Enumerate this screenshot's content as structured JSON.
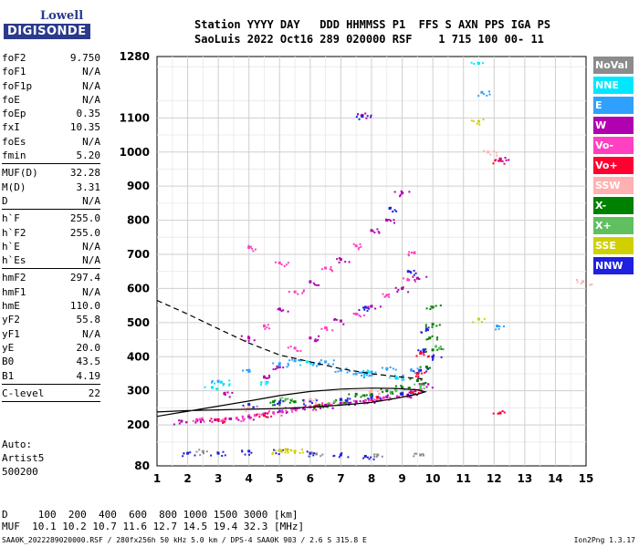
{
  "logo": {
    "line1": "Lowell",
    "line2": "DIGISONDE"
  },
  "header": {
    "labels": "Station YYYY DAY   DDD HHMMSS P1  FFS S AXN PPS IGA PS",
    "values": "SaoLuis 2022 Oct16 289 020000 RSF    1 715 100 00- 11"
  },
  "params": [
    [
      {
        "k": "foF2",
        "v": "9.750"
      },
      {
        "k": "foF1",
        "v": "N/A"
      },
      {
        "k": "foF1p",
        "v": "N/A"
      },
      {
        "k": "foE",
        "v": "N/A"
      },
      {
        "k": "foEp",
        "v": "0.35"
      },
      {
        "k": "fxI",
        "v": "10.35"
      },
      {
        "k": "foEs",
        "v": "N/A"
      },
      {
        "k": "fmin",
        "v": "5.20"
      }
    ],
    [
      {
        "k": "MUF(D)",
        "v": "32.28"
      },
      {
        "k": "M(D)",
        "v": "3.31"
      },
      {
        "k": "D",
        "v": "N/A"
      }
    ],
    [
      {
        "k": "h`F",
        "v": "255.0"
      },
      {
        "k": "h`F2",
        "v": "255.0"
      },
      {
        "k": "h`E",
        "v": "N/A"
      },
      {
        "k": "h`Es",
        "v": "N/A"
      }
    ],
    [
      {
        "k": "hmF2",
        "v": "297.4"
      },
      {
        "k": "hmF1",
        "v": "N/A"
      },
      {
        "k": "hmE",
        "v": "110.0"
      },
      {
        "k": "yF2",
        "v": "55.8"
      },
      {
        "k": "yF1",
        "v": "N/A"
      },
      {
        "k": "yE",
        "v": "20.0"
      },
      {
        "k": "B0",
        "v": "43.5"
      },
      {
        "k": "B1",
        "v": "4.19"
      }
    ],
    [
      {
        "k": "C-level",
        "v": "22"
      }
    ]
  ],
  "auto": {
    "line1": "Auto:",
    "line2": "Artist5",
    "line3": "500200"
  },
  "muf_table": {
    "d_row": "D     100  200  400  600  800 1000 1500 3000 [km]",
    "muf_row": "MUF  10.1 10.2 10.7 11.6 12.7 14.5 19.4 32.3 [MHz]"
  },
  "footer": "SAA0K_2022289020000.RSF / 280fx256h 50 kHz 5.0 km / DPS-4 SAA0K 903 / 2.6 S 315.8 E",
  "version": "Ion2Png 1.3.17",
  "legend": [
    {
      "label": "NoVal",
      "color": "#8c8c8c"
    },
    {
      "label": "NNE",
      "color": "#00e8ff"
    },
    {
      "label": "E",
      "color": "#30a0ff"
    },
    {
      "label": "W",
      "color": "#b000b0"
    },
    {
      "label": "Vo-",
      "color": "#ff40c0"
    },
    {
      "label": "Vo+",
      "color": "#ff0030"
    },
    {
      "label": "SSW",
      "color": "#ffb0b0"
    },
    {
      "label": "X-",
      "color": "#008000"
    },
    {
      "label": "X+",
      "color": "#60c060"
    },
    {
      "label": "SSE",
      "color": "#d0d000"
    },
    {
      "label": "NNW",
      "color": "#2020e0"
    }
  ],
  "chart_data": {
    "type": "scatter",
    "xlim": [
      1,
      15
    ],
    "ylim": [
      80,
      1280
    ],
    "x_ticks": [
      1,
      2,
      3,
      4,
      5,
      6,
      7,
      8,
      9,
      10,
      11,
      12,
      13,
      14,
      15
    ],
    "y_ticks": [
      80,
      200,
      300,
      400,
      500,
      600,
      700,
      800,
      900,
      1000,
      1100,
      1280
    ],
    "grid": true,
    "series": [
      {
        "color": "#b000b0",
        "points": [
          [
            1.8,
            211
          ],
          [
            2.3,
            213
          ],
          [
            2.9,
            215
          ],
          [
            3.4,
            218
          ],
          [
            4,
            224
          ],
          [
            4.5,
            232
          ],
          [
            5,
            240
          ],
          [
            5.5,
            248
          ],
          [
            6,
            253
          ],
          [
            6.5,
            258
          ],
          [
            7,
            263
          ],
          [
            7.5,
            268
          ],
          [
            8,
            274
          ],
          [
            8.5,
            282
          ],
          [
            9,
            290
          ],
          [
            9.4,
            300
          ],
          [
            9.7,
            320
          ],
          [
            3.2,
            292
          ],
          [
            4.5,
            340
          ],
          [
            5,
            370
          ],
          [
            6,
            455
          ],
          [
            7,
            505
          ],
          [
            8,
            548
          ],
          [
            9,
            600
          ],
          [
            9.5,
            630
          ],
          [
            4,
            455
          ],
          [
            5,
            540
          ],
          [
            6,
            620
          ],
          [
            7,
            685
          ],
          [
            8,
            770
          ],
          [
            8.5,
            800
          ],
          [
            9,
            880
          ],
          [
            7.7,
            1108
          ],
          [
            12.2,
            980
          ]
        ]
      },
      {
        "color": "#ff40c0",
        "points": [
          [
            2.4,
            216
          ],
          [
            3,
            216
          ],
          [
            3.6,
            220
          ],
          [
            4.2,
            228
          ],
          [
            4.8,
            236
          ],
          [
            5.4,
            246
          ],
          [
            6,
            254
          ],
          [
            6.6,
            260
          ],
          [
            7.2,
            266
          ],
          [
            7.8,
            272
          ],
          [
            8.4,
            280
          ],
          [
            9,
            292
          ],
          [
            9.4,
            302
          ],
          [
            5.5,
            425
          ],
          [
            6.5,
            485
          ],
          [
            7.5,
            525
          ],
          [
            8.5,
            580
          ],
          [
            9.2,
            625
          ],
          [
            9.4,
            705
          ],
          [
            4.5,
            490
          ],
          [
            5.5,
            590
          ],
          [
            6.5,
            660
          ],
          [
            7.5,
            725
          ],
          [
            4,
            720
          ],
          [
            5,
            675
          ]
        ]
      },
      {
        "color": "#30a0ff",
        "points": [
          [
            3,
            328
          ],
          [
            4,
            360
          ],
          [
            5,
            380
          ],
          [
            5.5,
            388
          ],
          [
            6.5,
            385
          ],
          [
            7,
            360
          ],
          [
            7.5,
            350
          ],
          [
            8,
            355
          ],
          [
            8.5,
            365
          ],
          [
            9,
            340
          ],
          [
            9.3,
            360
          ],
          [
            6.3,
            378
          ],
          [
            7.8,
            352
          ],
          [
            12.1,
            490
          ],
          [
            11.6,
            1175
          ]
        ]
      },
      {
        "color": "#00e8ff",
        "points": [
          [
            2.8,
            310
          ],
          [
            3.1,
            325
          ],
          [
            4.6,
            325
          ],
          [
            8.8,
            340
          ],
          [
            7.9,
            355
          ],
          [
            11.5,
            1260
          ],
          [
            5.9,
            385
          ]
        ]
      },
      {
        "color": "#008000",
        "points": [
          [
            5.5,
            268
          ],
          [
            6.3,
            258
          ],
          [
            7,
            273
          ],
          [
            7.5,
            290
          ],
          [
            8,
            290
          ],
          [
            8.5,
            300
          ],
          [
            9,
            310
          ],
          [
            9.5,
            330
          ],
          [
            9.8,
            370
          ],
          [
            10,
            420
          ],
          [
            10,
            495
          ],
          [
            10,
            545
          ],
          [
            9.9,
            455
          ],
          [
            4.8,
            268
          ]
        ]
      },
      {
        "color": "#60c060",
        "points": [
          [
            5.2,
            275
          ],
          [
            6.8,
            268
          ],
          [
            8.8,
            300
          ],
          [
            9.6,
            315
          ],
          [
            10.1,
            430
          ]
        ]
      },
      {
        "color": "#2020e0",
        "points": [
          [
            2,
            117
          ],
          [
            3,
            117
          ],
          [
            4,
            123
          ],
          [
            5,
            125
          ],
          [
            6,
            117
          ],
          [
            7,
            112
          ],
          [
            7.8,
            108
          ],
          [
            4,
            260
          ],
          [
            5,
            265
          ],
          [
            6,
            270
          ],
          [
            7,
            275
          ],
          [
            8,
            280
          ],
          [
            9,
            292
          ],
          [
            9.6,
            360
          ],
          [
            9.7,
            420
          ],
          [
            9.8,
            480
          ],
          [
            10,
            400
          ],
          [
            7.7,
            1105
          ],
          [
            8.6,
            835
          ],
          [
            7.8,
            545
          ],
          [
            9.2,
            650
          ]
        ]
      },
      {
        "color": "#ff0030",
        "points": [
          [
            3,
            215
          ],
          [
            4.5,
            228
          ],
          [
            6.2,
            256
          ],
          [
            8.2,
            280
          ],
          [
            9.3,
            295
          ],
          [
            9.5,
            350
          ],
          [
            9.6,
            410
          ],
          [
            12.2,
            975
          ],
          [
            12.2,
            235
          ]
        ]
      },
      {
        "color": "#d0d000",
        "points": [
          [
            5,
            125
          ],
          [
            5.2,
            128
          ],
          [
            5.5,
            123
          ],
          [
            11.5,
            1090
          ],
          [
            11.5,
            510
          ]
        ]
      },
      {
        "color": "#ffb0b0",
        "points": [
          [
            4,
            250
          ],
          [
            6,
            275
          ],
          [
            8,
            300
          ],
          [
            14.9,
            620
          ],
          [
            11.8,
            1000
          ]
        ]
      },
      {
        "color": "#8c8c8c",
        "points": [
          [
            2.5,
            122
          ],
          [
            6.2,
            115
          ],
          [
            8.2,
            112
          ],
          [
            9.6,
            112
          ]
        ]
      }
    ],
    "profile_solid": [
      [
        1,
        238
      ],
      [
        2,
        242
      ],
      [
        3,
        244
      ],
      [
        4,
        246
      ],
      [
        5,
        248
      ],
      [
        6,
        252
      ],
      [
        7,
        258
      ],
      [
        8,
        266
      ],
      [
        8.8,
        278
      ],
      [
        9.5,
        290
      ],
      [
        9.75,
        297
      ],
      [
        9.5,
        303
      ],
      [
        8.8,
        307
      ],
      [
        8,
        308
      ],
      [
        7,
        305
      ],
      [
        6,
        298
      ],
      [
        5,
        286
      ],
      [
        4,
        270
      ],
      [
        3,
        255
      ],
      [
        2,
        240
      ],
      [
        1,
        225
      ]
    ],
    "profile_dashed": [
      [
        1,
        565
      ],
      [
        2,
        525
      ],
      [
        3,
        482
      ],
      [
        4,
        440
      ],
      [
        5,
        405
      ],
      [
        6,
        385
      ],
      [
        7,
        365
      ],
      [
        8,
        350
      ],
      [
        9,
        340
      ],
      [
        9.7,
        335
      ]
    ]
  }
}
